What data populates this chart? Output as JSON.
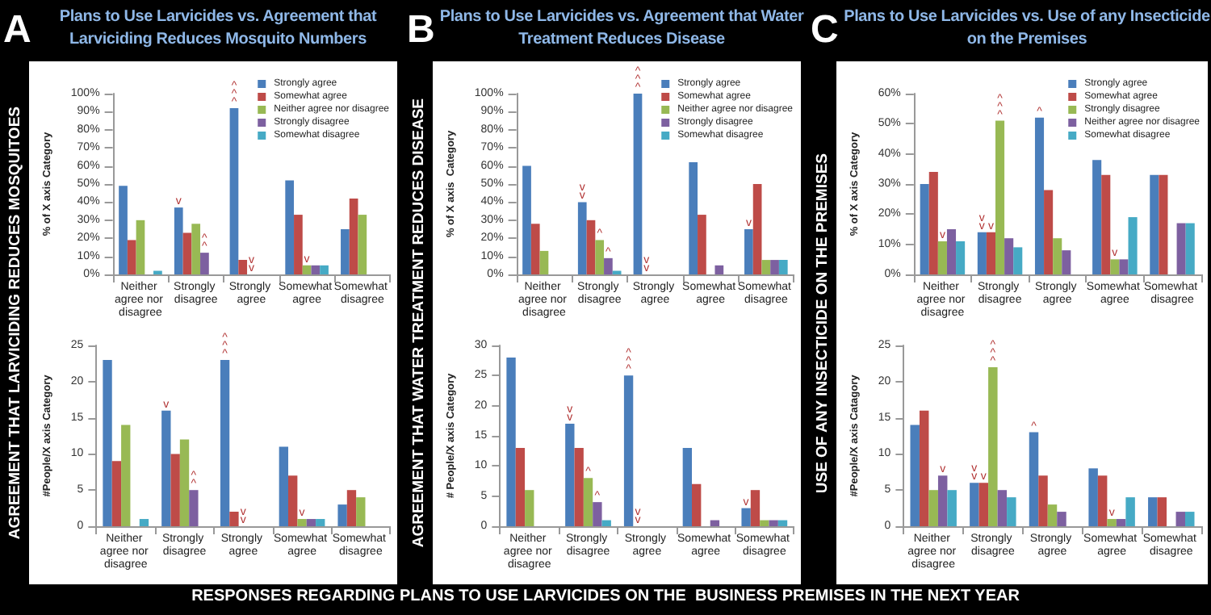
{
  "chart_data": [
    {
      "type": "bar",
      "title": "Plans to Use Larvicides vs. Agreement that Larviciding Reduces Mosquito Numbers",
      "ylabel": "% of X axis Category",
      "legend": "top right",
      "annotations": [
        "A",
        "AGREEMENT THAT LARVICIDING REDUCES MOSQUITOES",
        "RESPONSES REGARDING PLANS TO USE LARVICIDES ON THE  BUSINESS PREMISES IN THE NEXT YEAR"
      ],
      "categories": [
        "Neither agree nor disagree",
        "Strongly disagree",
        "Strongly agree",
        "Somewhat agree",
        "Somewhat disagree"
      ],
      "ylim": [
        0,
        100
      ],
      "yticks": [
        {
          "value": 0,
          "label": "0%"
        },
        {
          "value": 10,
          "label": "10%"
        },
        {
          "value": 20,
          "label": "20%"
        },
        {
          "value": 30,
          "label": "30%"
        },
        {
          "value": 40,
          "label": "40%"
        },
        {
          "value": 50,
          "label": "50%"
        },
        {
          "value": 60,
          "label": "60%"
        },
        {
          "value": 70,
          "label": "70%"
        },
        {
          "value": 80,
          "label": "80%"
        },
        {
          "value": 90,
          "label": "90%"
        },
        {
          "value": 100,
          "label": "100%"
        }
      ],
      "series": [
        {
          "name": "Strongly agree",
          "color": "#4a7ebb",
          "values": [
            49,
            37,
            92,
            52,
            25
          ],
          "value_labels": [
            null,
            "v",
            "^^^",
            null,
            null
          ]
        },
        {
          "name": "Somewhat agree",
          "color": "#be4b48",
          "values": [
            19,
            23,
            8,
            33,
            42
          ]
        },
        {
          "name": "Neither agree nor disagree",
          "color": "#98b954",
          "values": [
            30,
            28,
            0,
            5,
            33
          ],
          "value_labels": [
            null,
            null,
            "vv",
            "v",
            null
          ]
        },
        {
          "name": "Strongly disagree",
          "color": "#7d60a0",
          "values": [
            0,
            12,
            0,
            5,
            0
          ],
          "value_labels": [
            null,
            "^^",
            null,
            null,
            null
          ]
        },
        {
          "name": "Somewhat disagree",
          "color": "#46aac5",
          "values": [
            2,
            0,
            0,
            5,
            0
          ]
        }
      ]
    },
    {
      "type": "bar",
      "ylabel": "#People/X axis Category",
      "categories": [
        "Neither agree nor disagree",
        "Strongly disagree",
        "Strongly agree",
        "Somewhat agree",
        "Somewhat disagree"
      ],
      "ylim": [
        0,
        25
      ],
      "yticks": [
        0,
        5,
        10,
        15,
        20,
        25
      ],
      "series": [
        {
          "color": "#4a7ebb",
          "values": [
            23,
            16,
            23,
            11,
            3
          ],
          "value_labels": [
            null,
            "v",
            "^^^",
            null,
            null
          ]
        },
        {
          "color": "#be4b48",
          "values": [
            9,
            10,
            2,
            7,
            5
          ]
        },
        {
          "color": "#98b954",
          "values": [
            14,
            12,
            0,
            1,
            4
          ],
          "value_labels": [
            null,
            null,
            "vv",
            "v",
            null
          ]
        },
        {
          "color": "#7d60a0",
          "values": [
            0,
            5,
            0,
            1,
            0
          ],
          "value_labels": [
            null,
            "^^",
            null,
            null,
            null
          ]
        },
        {
          "color": "#46aac5",
          "values": [
            1,
            0,
            0,
            1,
            0
          ]
        }
      ]
    },
    {
      "type": "bar",
      "title": "Plans to Use Larvicides vs. Agreement that Water Treatment Reduces Disease",
      "ylabel": "% of X axis  Category",
      "legend": "top right",
      "annotations": [
        "B",
        "AGREEMENT THAT WATER TREATMENT REDUCES DISEASE"
      ],
      "categories": [
        "Neither agree nor disagree",
        "Strongly disagree",
        "Strongly agree",
        "Somewhat agree",
        "Somewhat disagree"
      ],
      "ylim": [
        0,
        100
      ],
      "yticks": [
        {
          "value": 0,
          "label": "0%"
        },
        {
          "value": 10,
          "label": "10%"
        },
        {
          "value": 20,
          "label": "20%"
        },
        {
          "value": 30,
          "label": "30%"
        },
        {
          "value": 40,
          "label": "40%"
        },
        {
          "value": 50,
          "label": "50%"
        },
        {
          "value": 60,
          "label": "60%"
        },
        {
          "value": 70,
          "label": "70%"
        },
        {
          "value": 80,
          "label": "80%"
        },
        {
          "value": 90,
          "label": "90%"
        },
        {
          "value": 100,
          "label": "100%"
        }
      ],
      "series": [
        {
          "name": "Strongly agree",
          "color": "#4a7ebb",
          "values": [
            60,
            40,
            100,
            62,
            25
          ],
          "value_labels": [
            null,
            "vv",
            "^^^",
            null,
            "v"
          ]
        },
        {
          "name": "Somewhat agree",
          "color": "#be4b48",
          "values": [
            28,
            30,
            0,
            33,
            50
          ],
          "value_labels": [
            null,
            null,
            "vv",
            null,
            null
          ]
        },
        {
          "name": "Neither agree nor disagree",
          "color": "#98b954",
          "values": [
            13,
            19,
            0,
            0,
            8
          ],
          "value_labels": [
            null,
            "^",
            null,
            null,
            null
          ]
        },
        {
          "name": "Strongly disagree",
          "color": "#7d60a0",
          "values": [
            0,
            9,
            0,
            5,
            8
          ],
          "value_labels": [
            null,
            "^",
            null,
            null,
            null
          ]
        },
        {
          "name": "Somewhat disagree",
          "color": "#46aac5",
          "values": [
            0,
            2,
            0,
            0,
            8
          ]
        }
      ]
    },
    {
      "type": "bar",
      "ylabel": "# People/X axis Category",
      "categories": [
        "Neither agree nor disagree",
        "Strongly disagree",
        "Strongly agree",
        "Somewhat agree",
        "Somewhat disagree"
      ],
      "ylim": [
        0,
        30
      ],
      "yticks": [
        0,
        5,
        10,
        15,
        20,
        25,
        30
      ],
      "series": [
        {
          "color": "#4a7ebb",
          "values": [
            28,
            17,
            25,
            13,
            3
          ],
          "value_labels": [
            null,
            "vv",
            "^^^",
            null,
            "v"
          ]
        },
        {
          "color": "#be4b48",
          "values": [
            13,
            13,
            0,
            7,
            6
          ],
          "value_labels": [
            null,
            null,
            "vv",
            null,
            null
          ]
        },
        {
          "color": "#98b954",
          "values": [
            6,
            8,
            0,
            0,
            1
          ],
          "value_labels": [
            null,
            "^",
            null,
            null,
            null
          ]
        },
        {
          "color": "#7d60a0",
          "values": [
            0,
            4,
            0,
            1,
            1
          ],
          "value_labels": [
            null,
            "^",
            null,
            null,
            null
          ]
        },
        {
          "color": "#46aac5",
          "values": [
            0,
            1,
            0,
            0,
            1
          ]
        }
      ]
    },
    {
      "type": "bar",
      "title": "Plans to Use Larvicides vs. Use of any Insecticide on the Premises",
      "ylabel": "% of X axis Category",
      "legend": "top right",
      "annotations": [
        "C",
        "USE OF  ANY INSECTICIDE ON THE PREMISES"
      ],
      "categories": [
        "Neither agree nor disagree",
        "Strongly disagree",
        "Strongly agree",
        "Somewhat agree",
        "Somewhat disagree"
      ],
      "ylim": [
        0,
        60
      ],
      "yticks": [
        {
          "value": 0,
          "label": "0%"
        },
        {
          "value": 10,
          "label": "10%"
        },
        {
          "value": 20,
          "label": "20%"
        },
        {
          "value": 30,
          "label": "30%"
        },
        {
          "value": 40,
          "label": "40%"
        },
        {
          "value": 50,
          "label": "50%"
        },
        {
          "value": 60,
          "label": "60%"
        }
      ],
      "series": [
        {
          "name": "Strongly agree",
          "color": "#4a7ebb",
          "values": [
            30,
            14,
            52,
            38,
            33
          ],
          "value_labels": [
            null,
            "vv",
            "^",
            null,
            null
          ]
        },
        {
          "name": "Somewhat agree",
          "color": "#be4b48",
          "values": [
            34,
            14,
            28,
            33,
            33
          ],
          "value_labels": [
            null,
            "v",
            null,
            null,
            null
          ]
        },
        {
          "name": "Strongly disagree",
          "color": "#98b954",
          "values": [
            11,
            51,
            12,
            5,
            0
          ],
          "value_labels": [
            "v",
            "^^^",
            null,
            "v",
            null
          ]
        },
        {
          "name": "Neither agree nor disagree",
          "color": "#7d60a0",
          "values": [
            15,
            12,
            8,
            5,
            17
          ]
        },
        {
          "name": "Somewhat disagree",
          "color": "#46aac5",
          "values": [
            11,
            9,
            0,
            19,
            17
          ]
        }
      ]
    },
    {
      "type": "bar",
      "ylabel": "#People/X axis Catagory",
      "categories": [
        "Neither agree nor disagree",
        "Strongly disagree",
        "Strongly agree",
        "Somewhat agree",
        "Somewhat disagree"
      ],
      "ylim": [
        0,
        25
      ],
      "yticks": [
        0,
        5,
        10,
        15,
        20,
        25
      ],
      "series": [
        {
          "color": "#4a7ebb",
          "values": [
            14,
            6,
            13,
            8,
            4
          ],
          "value_labels": [
            null,
            "vv",
            "^",
            null,
            null
          ]
        },
        {
          "color": "#be4b48",
          "values": [
            16,
            6,
            7,
            7,
            4
          ],
          "value_labels": [
            null,
            "v",
            null,
            null,
            null
          ]
        },
        {
          "color": "#98b954",
          "values": [
            5,
            22,
            3,
            1,
            0
          ],
          "value_labels": [
            null,
            "^^^",
            null,
            "v",
            null
          ]
        },
        {
          "color": "#7d60a0",
          "values": [
            7,
            5,
            2,
            1,
            2
          ],
          "value_labels": [
            "v",
            null,
            null,
            null,
            null
          ]
        },
        {
          "color": "#46aac5",
          "values": [
            5,
            4,
            0,
            4,
            2
          ]
        }
      ]
    }
  ]
}
